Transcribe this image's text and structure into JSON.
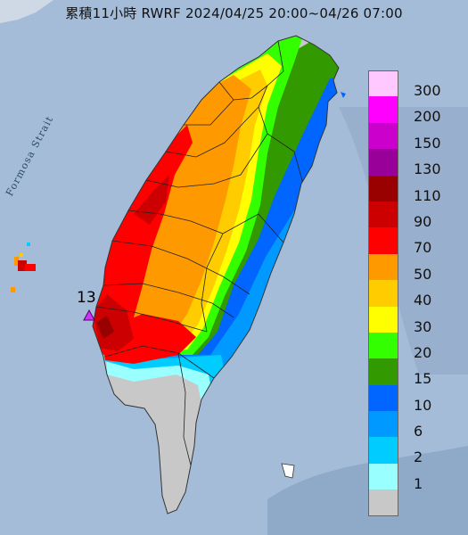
{
  "title": "累積11小時 RWRF 2024/04/25 20:00~04/26 07:00",
  "map": {
    "strait_label": "Formosa Strait",
    "station_value": "13",
    "station_marker_icon": "triangle-marker-icon"
  },
  "legend": {
    "items": [
      {
        "label": "300",
        "color": "#ffc8ff"
      },
      {
        "label": "200",
        "color": "#ff00ff"
      },
      {
        "label": "150",
        "color": "#cc00cc"
      },
      {
        "label": "130",
        "color": "#990099"
      },
      {
        "label": "110",
        "color": "#990000"
      },
      {
        "label": "90",
        "color": "#cc0000"
      },
      {
        "label": "70",
        "color": "#ff0000"
      },
      {
        "label": "50",
        "color": "#ff9900"
      },
      {
        "label": "40",
        "color": "#ffcc00"
      },
      {
        "label": "30",
        "color": "#ffff00"
      },
      {
        "label": "20",
        "color": "#33ff00"
      },
      {
        "label": "15",
        "color": "#339900"
      },
      {
        "label": "10",
        "color": "#0066ff"
      },
      {
        "label": "6",
        "color": "#0099ff"
      },
      {
        "label": "2",
        "color": "#00ccff"
      },
      {
        "label": "1",
        "color": "#99ffff"
      },
      {
        "label": "",
        "color": "#c8c8c8"
      }
    ]
  }
}
